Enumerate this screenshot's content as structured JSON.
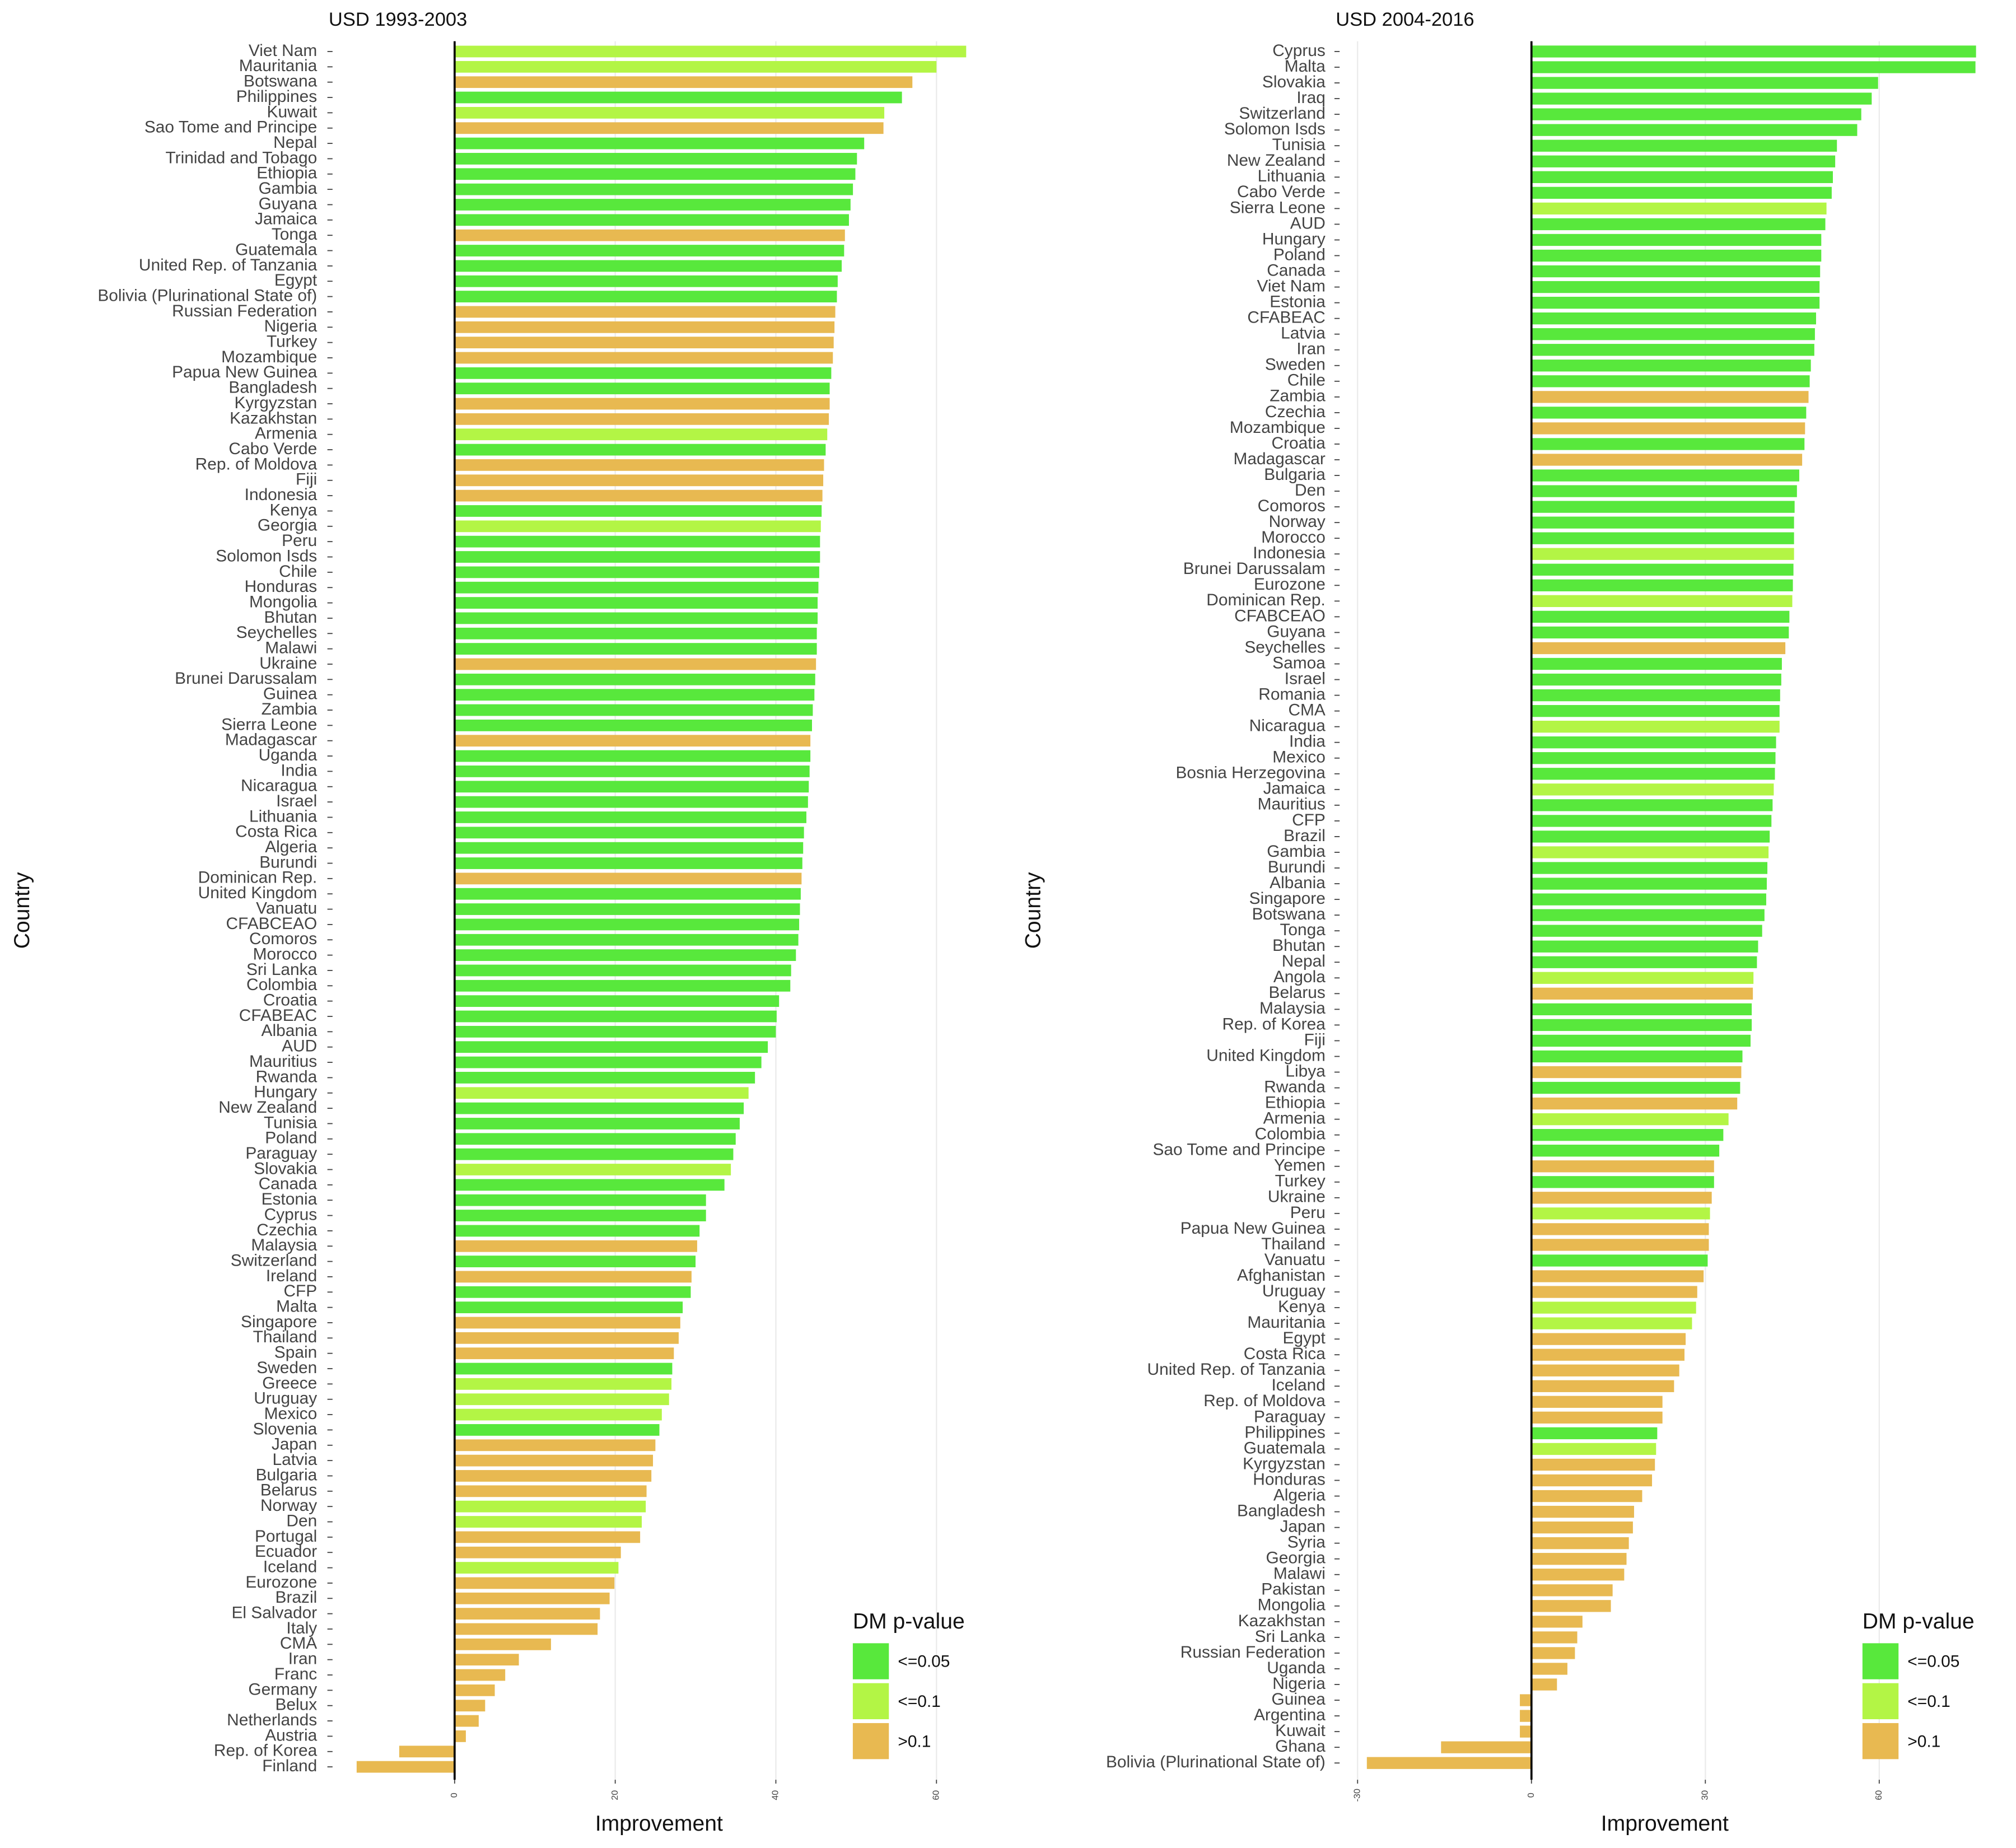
{
  "chart_data": [
    {
      "type": "hbar",
      "title": "USD 1993-2003",
      "x_label": "Improvement",
      "y_label": "Country",
      "categories": [
        "Viet Nam",
        "Mauritania",
        "Botswana",
        "Philippines",
        "Kuwait",
        "Sao Tome and Principe",
        "Nepal",
        "Trinidad and Tobago",
        "Ethiopia",
        "Gambia",
        "Guyana",
        "Jamaica",
        "Tonga",
        "Guatemala",
        "United Rep. of Tanzania",
        "Egypt",
        "Bolivia (Plurinational State of)",
        "Russian Federation",
        "Nigeria",
        "Turkey",
        "Mozambique",
        "Papua New Guinea",
        "Bangladesh",
        "Kyrgyzstan",
        "Kazakhstan",
        "Armenia",
        "Cabo Verde",
        "Rep. of Moldova",
        "Fiji",
        "Indonesia",
        "Kenya",
        "Georgia",
        "Peru",
        "Solomon Isds",
        "Chile",
        "Honduras",
        "Mongolia",
        "Bhutan",
        "Seychelles",
        "Malawi",
        "Ukraine",
        "Brunei Darussalam",
        "Guinea",
        "Zambia",
        "Sierra Leone",
        "Madagascar",
        "Uganda",
        "India",
        "Nicaragua",
        "Israel",
        "Lithuania",
        "Costa Rica",
        "Algeria",
        "Burundi",
        "Dominican Rep.",
        "United Kingdom",
        "Vanuatu",
        "CFABCEAO",
        "Comoros",
        "Morocco",
        "Sri Lanka",
        "Colombia",
        "Croatia",
        "CFABEAC",
        "Albania",
        "AUD",
        "Mauritius",
        "Rwanda",
        "Hungary",
        "New Zealand",
        "Tunisia",
        "Poland",
        "Paraguay",
        "Slovakia",
        "Canada",
        "Estonia",
        "Cyprus",
        "Czechia",
        "Malaysia",
        "Switzerland",
        "Ireland",
        "CFP",
        "Malta",
        "Singapore",
        "Thailand",
        "Spain",
        "Sweden",
        "Greece",
        "Uruguay",
        "Mexico",
        "Slovenia",
        "Japan",
        "Latvia",
        "Bulgaria",
        "Belarus",
        "Norway",
        "Den",
        "Portugal",
        "Ecuador",
        "Iceland",
        "Eurozone",
        "Brazil",
        "El Salvador",
        "Italy",
        "CMA",
        "Iran",
        "Franc",
        "Germany",
        "Belux",
        "Netherlands",
        "Austria",
        "Rep. of Korea",
        "Finland"
      ],
      "values": [
        63.7,
        60.0,
        57.0,
        55.7,
        53.5,
        53.4,
        51.0,
        50.1,
        49.9,
        49.6,
        49.3,
        49.1,
        48.6,
        48.5,
        48.2,
        47.7,
        47.6,
        47.4,
        47.3,
        47.2,
        47.1,
        46.9,
        46.7,
        46.7,
        46.6,
        46.4,
        46.2,
        46.0,
        45.9,
        45.8,
        45.7,
        45.6,
        45.5,
        45.5,
        45.4,
        45.3,
        45.2,
        45.2,
        45.1,
        45.1,
        45.0,
        44.9,
        44.8,
        44.6,
        44.5,
        44.3,
        44.3,
        44.2,
        44.1,
        44.0,
        43.8,
        43.5,
        43.4,
        43.3,
        43.2,
        43.1,
        43.0,
        42.9,
        42.8,
        42.5,
        41.9,
        41.8,
        40.4,
        40.1,
        40.0,
        39.0,
        38.2,
        37.4,
        36.6,
        36.0,
        35.5,
        35.0,
        34.7,
        34.4,
        33.6,
        31.3,
        31.3,
        30.5,
        30.2,
        30.0,
        29.5,
        29.4,
        28.4,
        28.1,
        27.9,
        27.3,
        27.1,
        27.0,
        26.7,
        25.8,
        25.5,
        25.0,
        24.7,
        24.5,
        23.9,
        23.8,
        23.3,
        23.1,
        20.7,
        20.4,
        19.9,
        19.3,
        18.1,
        17.8,
        12.0,
        8.0,
        6.3,
        5.0,
        3.8,
        3.0,
        1.4,
        -6.9,
        -12.2
      ],
      "p_class": [
        1,
        1,
        2,
        0,
        1,
        2,
        0,
        0,
        0,
        0,
        0,
        0,
        2,
        0,
        0,
        0,
        0,
        2,
        2,
        2,
        2,
        0,
        0,
        2,
        2,
        1,
        0,
        2,
        2,
        2,
        0,
        1,
        0,
        0,
        0,
        0,
        0,
        0,
        0,
        0,
        2,
        0,
        0,
        0,
        0,
        2,
        0,
        0,
        0,
        0,
        0,
        0,
        0,
        0,
        2,
        0,
        0,
        0,
        0,
        0,
        0,
        0,
        0,
        0,
        0,
        0,
        0,
        0,
        1,
        0,
        0,
        0,
        0,
        1,
        0,
        0,
        0,
        0,
        2,
        0,
        2,
        0,
        0,
        2,
        2,
        2,
        0,
        1,
        1,
        1,
        0,
        2,
        2,
        2,
        2,
        1,
        1,
        2,
        2,
        1,
        2,
        2,
        2,
        2,
        2,
        2,
        2,
        2,
        2,
        2,
        2,
        2,
        2
      ],
      "xlim": [
        -15.2,
        66.1
      ],
      "xticks": [
        0,
        20,
        40,
        60
      ],
      "grid": true,
      "legend": {
        "title": "DM p-value",
        "labels": [
          "<=0.05",
          "<=0.1",
          ">0.1"
        ],
        "colors": [
          "#58e83c",
          "#b3f545",
          "#e8b951"
        ]
      }
    },
    {
      "type": "hbar",
      "title": "USD 2004-2016",
      "x_label": "Improvement",
      "y_label": "Country",
      "categories": [
        "Cyprus",
        "Malta",
        "Slovakia",
        "Iraq",
        "Switzerland",
        "Solomon Isds",
        "Tunisia",
        "New Zealand",
        "Lithuania",
        "Cabo Verde",
        "Sierra Leone",
        "AUD",
        "Hungary",
        "Poland",
        "Canada",
        "Viet Nam",
        "Estonia",
        "CFABEAC",
        "Latvia",
        "Iran",
        "Sweden",
        "Chile",
        "Zambia",
        "Czechia",
        "Mozambique",
        "Croatia",
        "Madagascar",
        "Bulgaria",
        "Den",
        "Comoros",
        "Norway",
        "Morocco",
        "Indonesia",
        "Brunei Darussalam",
        "Eurozone",
        "Dominican Rep.",
        "CFABCEAO",
        "Guyana",
        "Seychelles",
        "Samoa",
        "Israel",
        "Romania",
        "CMA",
        "Nicaragua",
        "India",
        "Mexico",
        "Bosnia Herzegovina",
        "Jamaica",
        "Mauritius",
        "CFP",
        "Brazil",
        "Gambia",
        "Burundi",
        "Albania",
        "Singapore",
        "Botswana",
        "Tonga",
        "Bhutan",
        "Nepal",
        "Angola",
        "Belarus",
        "Malaysia",
        "Rep. of Korea",
        "Fiji",
        "United Kingdom",
        "Libya",
        "Rwanda",
        "Ethiopia",
        "Armenia",
        "Colombia",
        "Sao Tome and Principe",
        "Yemen",
        "Turkey",
        "Ukraine",
        "Peru",
        "Papua New Guinea",
        "Thailand",
        "Vanuatu",
        "Afghanistan",
        "Uruguay",
        "Kenya",
        "Mauritania",
        "Egypt",
        "Costa Rica",
        "United Rep. of Tanzania",
        "Iceland",
        "Rep. of Moldova",
        "Paraguay",
        "Philippines",
        "Guatemala",
        "Kyrgyzstan",
        "Honduras",
        "Algeria",
        "Bangladesh",
        "Japan",
        "Syria",
        "Georgia",
        "Malawi",
        "Pakistan",
        "Mongolia",
        "Kazakhstan",
        "Sri Lanka",
        "Russian Federation",
        "Uganda",
        "Nigeria",
        "Guinea",
        "Argentina",
        "Kuwait",
        "Ghana",
        "Bolivia (Plurinational State of)"
      ],
      "values": [
        76.7,
        76.6,
        59.8,
        58.7,
        56.9,
        56.2,
        52.7,
        52.4,
        52.0,
        51.8,
        50.9,
        50.7,
        50.0,
        50.0,
        49.8,
        49.7,
        49.7,
        49.1,
        48.9,
        48.8,
        48.2,
        48.0,
        47.8,
        47.4,
        47.2,
        47.1,
        46.7,
        46.2,
        45.8,
        45.4,
        45.3,
        45.3,
        45.3,
        45.2,
        45.1,
        45.0,
        44.5,
        44.4,
        43.8,
        43.2,
        43.1,
        42.9,
        42.8,
        42.8,
        42.2,
        42.1,
        42.0,
        41.8,
        41.6,
        41.4,
        41.1,
        40.9,
        40.7,
        40.6,
        40.5,
        40.2,
        39.8,
        39.1,
        38.9,
        38.3,
        38.2,
        38.0,
        38.0,
        37.8,
        36.4,
        36.2,
        36.0,
        35.5,
        34.0,
        33.1,
        32.4,
        31.5,
        31.5,
        31.1,
        30.8,
        30.6,
        30.6,
        30.4,
        29.7,
        28.6,
        28.4,
        27.7,
        26.6,
        26.4,
        25.5,
        24.6,
        22.6,
        22.6,
        21.7,
        21.5,
        21.3,
        20.8,
        19.1,
        17.7,
        17.5,
        16.8,
        16.4,
        16.0,
        14.0,
        13.7,
        8.8,
        7.9,
        7.5,
        6.2,
        4.4,
        -2.0,
        -2.0,
        -2.0,
        -15.6,
        -28.4
      ],
      "p_class": [
        0,
        0,
        0,
        0,
        0,
        0,
        0,
        0,
        0,
        0,
        1,
        0,
        0,
        0,
        0,
        0,
        0,
        0,
        0,
        0,
        0,
        0,
        2,
        0,
        2,
        0,
        2,
        0,
        0,
        0,
        0,
        0,
        1,
        0,
        0,
        1,
        0,
        0,
        2,
        0,
        0,
        0,
        0,
        1,
        0,
        0,
        0,
        1,
        0,
        0,
        0,
        1,
        0,
        0,
        0,
        0,
        0,
        0,
        0,
        1,
        2,
        0,
        0,
        0,
        0,
        2,
        0,
        2,
        1,
        0,
        0,
        2,
        0,
        2,
        1,
        2,
        2,
        0,
        2,
        2,
        1,
        1,
        2,
        2,
        2,
        2,
        2,
        2,
        0,
        1,
        2,
        2,
        2,
        2,
        2,
        2,
        2,
        2,
        2,
        2,
        2,
        2,
        2,
        2,
        2,
        2,
        2,
        2,
        2,
        2
      ],
      "xlim": [
        -33.1,
        79.1
      ],
      "xticks": [
        -30,
        0,
        30,
        60
      ],
      "grid": true,
      "legend": {
        "title": "DM p-value",
        "labels": [
          "<=0.05",
          "<=0.1",
          ">0.1"
        ],
        "colors": [
          "#58e83c",
          "#b3f545",
          "#e8b951"
        ]
      }
    }
  ]
}
